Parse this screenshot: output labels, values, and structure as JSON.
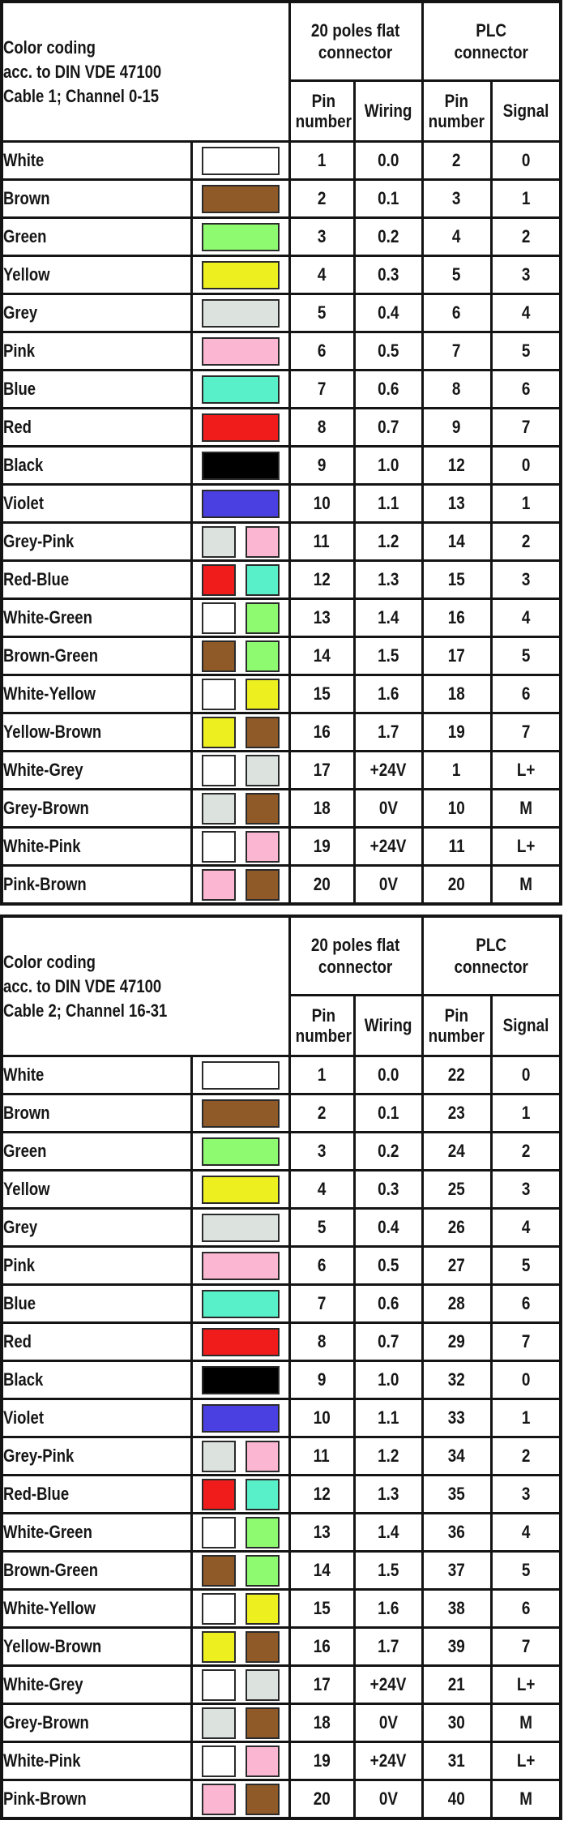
{
  "page_background": "#ffffff",
  "border_color": "#141414",
  "swatch_colors": {
    "white": "#ffffff",
    "brown": "#8f5a28",
    "green": "#8efa70",
    "yellow": "#edf01e",
    "grey": "#dce3df",
    "pink": "#fbb6d2",
    "blue": "#57f0c8",
    "red": "#f01c1c",
    "black": "#000000",
    "violet": "#4a40e2"
  },
  "tables": [
    {
      "title_lines": [
        "Color coding",
        "acc. to DIN VDE 47100",
        "Cable 1; Channel 0-15"
      ],
      "headers": {
        "flat_group_line1": "20 poles flat",
        "flat_group_line2": "connector",
        "plc_group_line1": "PLC",
        "plc_group_line2": "connector",
        "flat_pin_line1": "Pin",
        "flat_pin_line2": "number",
        "wiring": "Wiring",
        "plc_pin_line1": "Pin",
        "plc_pin_line2": "number",
        "signal": "Signal"
      }
    },
    {
      "title_lines": [
        "Color coding",
        "acc. to DIN VDE 47100",
        "Cable 2; Channel 16-31"
      ],
      "headers": {
        "flat_group_line1": "20 poles flat",
        "flat_group_line2": "connector",
        "plc_group_line1": "PLC",
        "plc_group_line2": "connector",
        "flat_pin_line1": "Pin",
        "flat_pin_line2": "number",
        "wiring": "Wiring",
        "plc_pin_line1": "Pin",
        "plc_pin_line2": "number",
        "signal": "Signal"
      }
    }
  ],
  "chart_data": [
    {
      "type": "table",
      "title": "Color coding acc. to DIN VDE 47100 — Cable 1; Channel 0-15",
      "columns": [
        "Color",
        "Color swatch",
        "20 poles flat connector: Pin number",
        "20 poles flat connector: Wiring",
        "PLC connector: Pin number",
        "PLC connector: Signal"
      ],
      "rows": [
        {
          "name": "White",
          "swatches": [
            "white"
          ],
          "flat_pin": "1",
          "wiring": "0.0",
          "plc_pin": "2",
          "signal": "0"
        },
        {
          "name": "Brown",
          "swatches": [
            "brown"
          ],
          "flat_pin": "2",
          "wiring": "0.1",
          "plc_pin": "3",
          "signal": "1"
        },
        {
          "name": "Green",
          "swatches": [
            "green"
          ],
          "flat_pin": "3",
          "wiring": "0.2",
          "plc_pin": "4",
          "signal": "2"
        },
        {
          "name": "Yellow",
          "swatches": [
            "yellow"
          ],
          "flat_pin": "4",
          "wiring": "0.3",
          "plc_pin": "5",
          "signal": "3"
        },
        {
          "name": "Grey",
          "swatches": [
            "grey"
          ],
          "flat_pin": "5",
          "wiring": "0.4",
          "plc_pin": "6",
          "signal": "4"
        },
        {
          "name": "Pink",
          "swatches": [
            "pink"
          ],
          "flat_pin": "6",
          "wiring": "0.5",
          "plc_pin": "7",
          "signal": "5"
        },
        {
          "name": "Blue",
          "swatches": [
            "blue"
          ],
          "flat_pin": "7",
          "wiring": "0.6",
          "plc_pin": "8",
          "signal": "6"
        },
        {
          "name": "Red",
          "swatches": [
            "red"
          ],
          "flat_pin": "8",
          "wiring": "0.7",
          "plc_pin": "9",
          "signal": "7"
        },
        {
          "name": "Black",
          "swatches": [
            "black"
          ],
          "flat_pin": "9",
          "wiring": "1.0",
          "plc_pin": "12",
          "signal": "0"
        },
        {
          "name": "Violet",
          "swatches": [
            "violet"
          ],
          "flat_pin": "10",
          "wiring": "1.1",
          "plc_pin": "13",
          "signal": "1"
        },
        {
          "name": "Grey-Pink",
          "swatches": [
            "grey",
            "pink"
          ],
          "flat_pin": "11",
          "wiring": "1.2",
          "plc_pin": "14",
          "signal": "2"
        },
        {
          "name": "Red-Blue",
          "swatches": [
            "red",
            "blue"
          ],
          "flat_pin": "12",
          "wiring": "1.3",
          "plc_pin": "15",
          "signal": "3"
        },
        {
          "name": "White-Green",
          "swatches": [
            "white",
            "green"
          ],
          "flat_pin": "13",
          "wiring": "1.4",
          "plc_pin": "16",
          "signal": "4"
        },
        {
          "name": "Brown-Green",
          "swatches": [
            "brown",
            "green"
          ],
          "flat_pin": "14",
          "wiring": "1.5",
          "plc_pin": "17",
          "signal": "5"
        },
        {
          "name": "White-Yellow",
          "swatches": [
            "white",
            "yellow"
          ],
          "flat_pin": "15",
          "wiring": "1.6",
          "plc_pin": "18",
          "signal": "6"
        },
        {
          "name": "Yellow-Brown",
          "swatches": [
            "yellow",
            "brown"
          ],
          "flat_pin": "16",
          "wiring": "1.7",
          "plc_pin": "19",
          "signal": "7"
        },
        {
          "name": "White-Grey",
          "swatches": [
            "white",
            "grey"
          ],
          "flat_pin": "17",
          "wiring": "+24V",
          "plc_pin": "1",
          "signal": "L+"
        },
        {
          "name": "Grey-Brown",
          "swatches": [
            "grey",
            "brown"
          ],
          "flat_pin": "18",
          "wiring": "0V",
          "plc_pin": "10",
          "signal": "M"
        },
        {
          "name": "White-Pink",
          "swatches": [
            "white",
            "pink"
          ],
          "flat_pin": "19",
          "wiring": "+24V",
          "plc_pin": "11",
          "signal": "L+"
        },
        {
          "name": "Pink-Brown",
          "swatches": [
            "pink",
            "brown"
          ],
          "flat_pin": "20",
          "wiring": "0V",
          "plc_pin": "20",
          "signal": "M"
        }
      ]
    },
    {
      "type": "table",
      "title": "Color coding acc. to DIN VDE 47100 — Cable 2; Channel 16-31",
      "columns": [
        "Color",
        "Color swatch",
        "20 poles flat connector: Pin number",
        "20 poles flat connector: Wiring",
        "PLC connector: Pin number",
        "PLC connector: Signal"
      ],
      "rows": [
        {
          "name": "White",
          "swatches": [
            "white"
          ],
          "flat_pin": "1",
          "wiring": "0.0",
          "plc_pin": "22",
          "signal": "0"
        },
        {
          "name": "Brown",
          "swatches": [
            "brown"
          ],
          "flat_pin": "2",
          "wiring": "0.1",
          "plc_pin": "23",
          "signal": "1"
        },
        {
          "name": "Green",
          "swatches": [
            "green"
          ],
          "flat_pin": "3",
          "wiring": "0.2",
          "plc_pin": "24",
          "signal": "2"
        },
        {
          "name": "Yellow",
          "swatches": [
            "yellow"
          ],
          "flat_pin": "4",
          "wiring": "0.3",
          "plc_pin": "25",
          "signal": "3"
        },
        {
          "name": "Grey",
          "swatches": [
            "grey"
          ],
          "flat_pin": "5",
          "wiring": "0.4",
          "plc_pin": "26",
          "signal": "4"
        },
        {
          "name": "Pink",
          "swatches": [
            "pink"
          ],
          "flat_pin": "6",
          "wiring": "0.5",
          "plc_pin": "27",
          "signal": "5"
        },
        {
          "name": "Blue",
          "swatches": [
            "blue"
          ],
          "flat_pin": "7",
          "wiring": "0.6",
          "plc_pin": "28",
          "signal": "6"
        },
        {
          "name": "Red",
          "swatches": [
            "red"
          ],
          "flat_pin": "8",
          "wiring": "0.7",
          "plc_pin": "29",
          "signal": "7"
        },
        {
          "name": "Black",
          "swatches": [
            "black"
          ],
          "flat_pin": "9",
          "wiring": "1.0",
          "plc_pin": "32",
          "signal": "0"
        },
        {
          "name": "Violet",
          "swatches": [
            "violet"
          ],
          "flat_pin": "10",
          "wiring": "1.1",
          "plc_pin": "33",
          "signal": "1"
        },
        {
          "name": "Grey-Pink",
          "swatches": [
            "grey",
            "pink"
          ],
          "flat_pin": "11",
          "wiring": "1.2",
          "plc_pin": "34",
          "signal": "2"
        },
        {
          "name": "Red-Blue",
          "swatches": [
            "red",
            "blue"
          ],
          "flat_pin": "12",
          "wiring": "1.3",
          "plc_pin": "35",
          "signal": "3"
        },
        {
          "name": "White-Green",
          "swatches": [
            "white",
            "green"
          ],
          "flat_pin": "13",
          "wiring": "1.4",
          "plc_pin": "36",
          "signal": "4"
        },
        {
          "name": "Brown-Green",
          "swatches": [
            "brown",
            "green"
          ],
          "flat_pin": "14",
          "wiring": "1.5",
          "plc_pin": "37",
          "signal": "5"
        },
        {
          "name": "White-Yellow",
          "swatches": [
            "white",
            "yellow"
          ],
          "flat_pin": "15",
          "wiring": "1.6",
          "plc_pin": "38",
          "signal": "6"
        },
        {
          "name": "Yellow-Brown",
          "swatches": [
            "yellow",
            "brown"
          ],
          "flat_pin": "16",
          "wiring": "1.7",
          "plc_pin": "39",
          "signal": "7"
        },
        {
          "name": "White-Grey",
          "swatches": [
            "white",
            "grey"
          ],
          "flat_pin": "17",
          "wiring": "+24V",
          "plc_pin": "21",
          "signal": "L+"
        },
        {
          "name": "Grey-Brown",
          "swatches": [
            "grey",
            "brown"
          ],
          "flat_pin": "18",
          "wiring": "0V",
          "plc_pin": "30",
          "signal": "M"
        },
        {
          "name": "White-Pink",
          "swatches": [
            "white",
            "pink"
          ],
          "flat_pin": "19",
          "wiring": "+24V",
          "plc_pin": "31",
          "signal": "L+"
        },
        {
          "name": "Pink-Brown",
          "swatches": [
            "pink",
            "brown"
          ],
          "flat_pin": "20",
          "wiring": "0V",
          "plc_pin": "40",
          "signal": "M"
        }
      ]
    }
  ]
}
